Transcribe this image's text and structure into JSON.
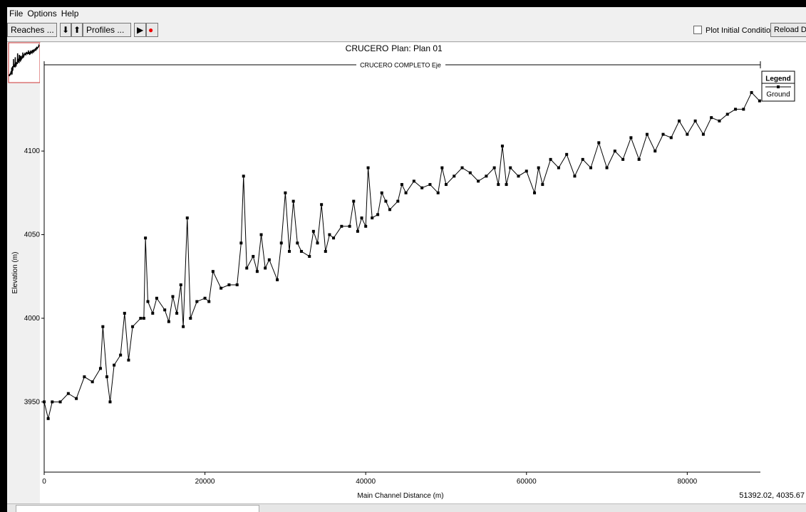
{
  "menu": [
    "File",
    "Options",
    "Help"
  ],
  "toolbar": {
    "reaches": "Reaches ...",
    "profiles": "Profiles ...",
    "plot_initial_conditions": "Plot Initial Conditions",
    "reload": "Reload Dat"
  },
  "chart_data": {
    "type": "line",
    "title": "CRUCERO",
    "subtitle": "Plan: Plan 01",
    "reach_label": "CRUCERO COMPLETO Eje",
    "x_label": "Main Channel Distance (m)",
    "y_label": "Elevation (m)",
    "legend_title": "Legend",
    "cursor_readout": "51392.02, 4035.67",
    "xlim": [
      0,
      89100
    ],
    "ylim": [
      3908,
      4152
    ],
    "xticks": [
      0,
      20000,
      40000,
      60000,
      80000
    ],
    "yticks": [
      3950,
      4000,
      4050,
      4100
    ],
    "x": [
      0,
      500,
      1000,
      2000,
      3000,
      4000,
      5000,
      6000,
      7000,
      7300,
      7800,
      8200,
      8700,
      9500,
      10000,
      10500,
      11000,
      12000,
      12400,
      12600,
      12900,
      13500,
      14000,
      15000,
      15500,
      16000,
      16500,
      17000,
      17300,
      17800,
      18200,
      19000,
      20000,
      20500,
      21000,
      22000,
      23000,
      24000,
      24500,
      24800,
      25200,
      26000,
      26500,
      27000,
      27500,
      28000,
      29000,
      29500,
      30000,
      30500,
      31000,
      31500,
      32000,
      33000,
      33500,
      34000,
      34500,
      35000,
      35500,
      36000,
      37000,
      38000,
      38500,
      39000,
      39500,
      40000,
      40300,
      40800,
      41500,
      42000,
      42500,
      43000,
      44000,
      44500,
      45000,
      46000,
      47000,
      48000,
      49000,
      49500,
      50000,
      51000,
      52000,
      53000,
      54000,
      55000,
      56000,
      56500,
      57000,
      57500,
      58000,
      59000,
      60000,
      61000,
      61500,
      62000,
      63000,
      64000,
      65000,
      66000,
      67000,
      68000,
      69000,
      70000,
      71000,
      72000,
      73000,
      74000,
      75000,
      76000,
      77000,
      78000,
      79000,
      80000,
      81000,
      82000,
      83000,
      84000,
      85000,
      86000,
      87000,
      88000,
      89000
    ],
    "series": [
      {
        "name": "Ground",
        "color": "#000000",
        "values": [
          3950,
          3940,
          3950,
          3950,
          3955,
          3952,
          3965,
          3962,
          3970,
          3995,
          3965,
          3950,
          3972,
          3978,
          4003,
          3975,
          3995,
          4000,
          4000,
          4048,
          4010,
          4003,
          4012,
          4005,
          3998,
          4013,
          4003,
          4020,
          3995,
          4060,
          4000,
          4010,
          4012,
          4010,
          4028,
          4018,
          4020,
          4020,
          4045,
          4085,
          4030,
          4037,
          4028,
          4050,
          4030,
          4035,
          4023,
          4045,
          4075,
          4040,
          4070,
          4045,
          4040,
          4037,
          4052,
          4045,
          4068,
          4040,
          4050,
          4048,
          4055,
          4055,
          4070,
          4052,
          4060,
          4055,
          4090,
          4060,
          4062,
          4075,
          4070,
          4065,
          4070,
          4080,
          4075,
          4082,
          4078,
          4080,
          4075,
          4090,
          4080,
          4085,
          4090,
          4087,
          4082,
          4085,
          4090,
          4080,
          4103,
          4080,
          4090,
          4085,
          4088,
          4075,
          4090,
          4080,
          4095,
          4090,
          4098,
          4085,
          4095,
          4090,
          4105,
          4090,
          4100,
          4095,
          4108,
          4095,
          4110,
          4100,
          4110,
          4108,
          4118,
          4110,
          4118,
          4110,
          4120,
          4118,
          4122,
          4125,
          4125,
          4135,
          4130
        ]
      }
    ],
    "grid": false
  }
}
